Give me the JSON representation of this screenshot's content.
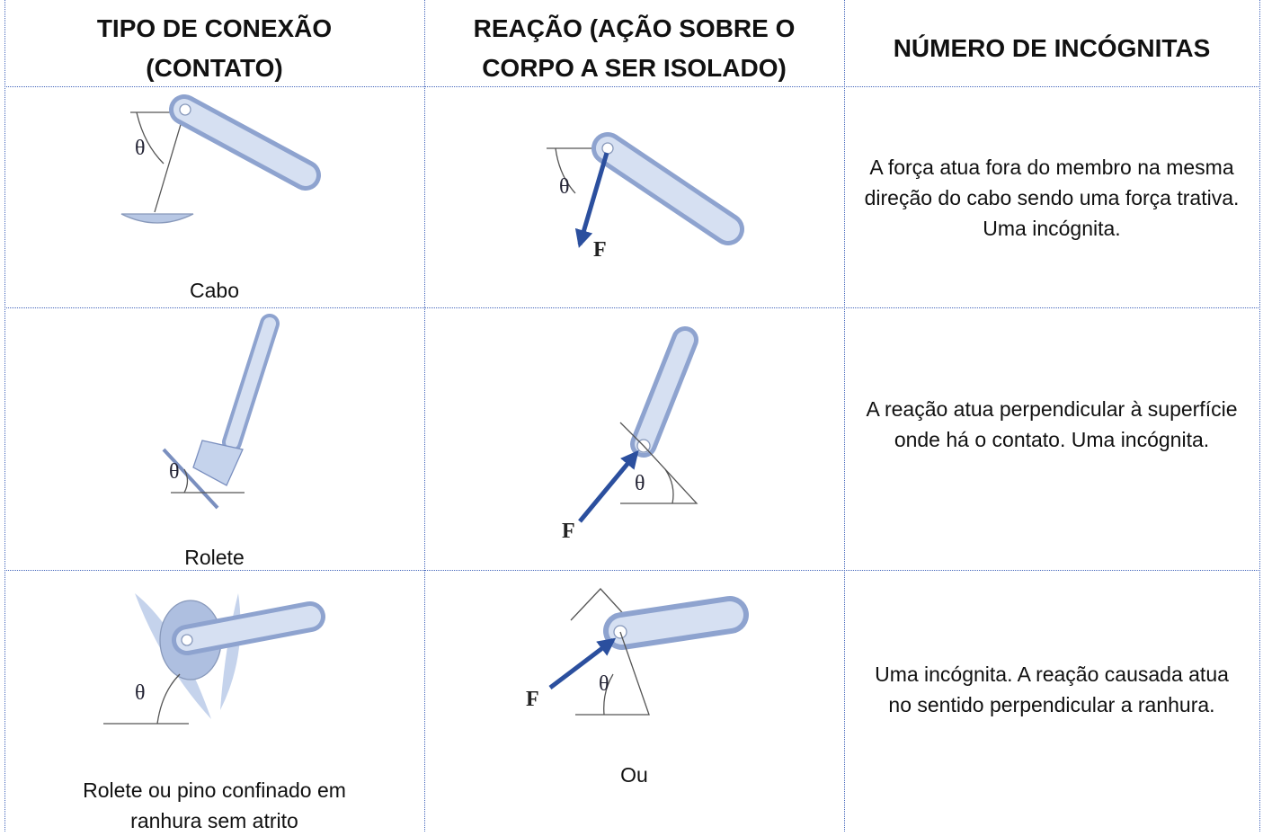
{
  "table": {
    "headers": [
      [
        "TIPO DE CONEXÃO",
        "(CONTATO)"
      ],
      [
        "REAÇÃO (AÇÃO SOBRE O",
        "CORPO A SER ISOLADO)"
      ],
      [
        "NÚMERO DE INCÓGNITAS"
      ]
    ],
    "rows": [
      {
        "connection": "Cabo",
        "description": "A força atua fora do membro na mesma direção do cabo sendo uma força trativa. Uma incógnita."
      },
      {
        "connection": "Rolete",
        "description": "A reação atua perpendicular à superfície onde há o contato. Uma incógnita."
      },
      {
        "connection": "Rolete ou pino confinado em ranhura sem atrito",
        "reaction_note": "Ou",
        "description": "Uma incógnita. A reação causada atua no sentido perpendicular a ranhura."
      }
    ],
    "symbols": {
      "angle": "θ",
      "force": "F"
    }
  }
}
